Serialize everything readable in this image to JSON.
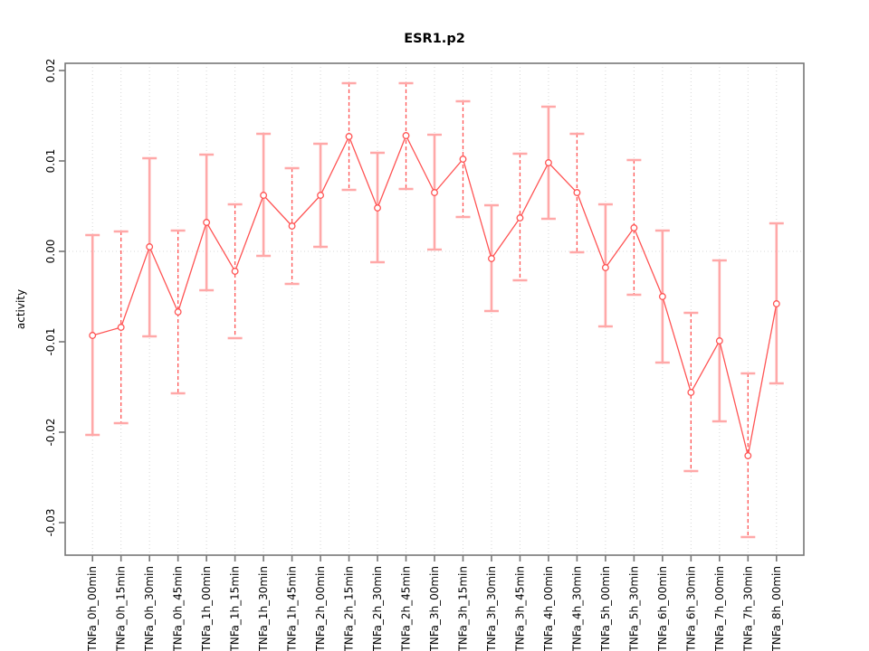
{
  "chart_data": {
    "type": "line",
    "title": "ESR1.p2",
    "xlabel": "",
    "ylabel": "activity",
    "legend": "none",
    "grid": "vertical dotted gridline at every category; horizontal dotted line at y=0 only",
    "categories": [
      "TNFa_0h_00min",
      "TNFa_0h_15min",
      "TNFa_0h_30min",
      "TNFa_0h_45min",
      "TNFa_1h_00min",
      "TNFa_1h_15min",
      "TNFa_1h_30min",
      "TNFa_1h_45min",
      "TNFa_2h_00min",
      "TNFa_2h_15min",
      "TNFa_2h_30min",
      "TNFa_2h_45min",
      "TNFa_3h_00min",
      "TNFa_3h_15min",
      "TNFa_3h_30min",
      "TNFa_3h_45min",
      "TNFa_4h_00min",
      "TNFa_4h_30min",
      "TNFa_5h_00min",
      "TNFa_5h_30min",
      "TNFa_6h_00min",
      "TNFa_6h_30min",
      "TNFa_7h_00min",
      "TNFa_7h_30min",
      "TNFa_8h_00min"
    ],
    "series": [
      {
        "name": "activity",
        "marker": "open-circle",
        "values": [
          -0.0093,
          -0.0084,
          0.0005,
          -0.0067,
          0.0032,
          -0.0022,
          0.0062,
          0.0028,
          0.0062,
          0.0127,
          0.0048,
          0.0128,
          0.0065,
          0.0102,
          -0.0008,
          0.0037,
          0.0098,
          0.0065,
          -0.0018,
          0.0026,
          -0.005,
          -0.0156,
          -0.0099,
          -0.0226,
          -0.0058
        ],
        "lower": [
          -0.0203,
          -0.019,
          -0.0094,
          -0.0157,
          -0.0043,
          -0.0096,
          -0.0005,
          -0.0036,
          0.0005,
          0.0068,
          -0.0012,
          0.0069,
          0.0002,
          0.0038,
          -0.0066,
          -0.0032,
          0.0036,
          -0.0001,
          -0.0083,
          -0.0048,
          -0.0123,
          -0.0243,
          -0.0188,
          -0.0316,
          -0.0146
        ],
        "upper": [
          0.0018,
          0.0022,
          0.0103,
          0.0023,
          0.0107,
          0.0052,
          0.013,
          0.0092,
          0.0119,
          0.0186,
          0.0109,
          0.0186,
          0.0129,
          0.0166,
          0.0051,
          0.0108,
          0.016,
          0.013,
          0.0052,
          0.0101,
          0.0023,
          -0.0068,
          -0.001,
          -0.0135,
          0.0031
        ]
      }
    ],
    "ytick_labels": [
      "0.02",
      "0.01",
      "0.00",
      "-0.01",
      "-0.02",
      "-0.03"
    ],
    "ytick_values": [
      0.02,
      0.01,
      0.0,
      -0.01,
      -0.02,
      -0.03
    ],
    "ylim": [
      -0.0336,
      0.0208
    ],
    "error_bar_style_pattern": "odd-numbered points: solid thick light-red bar; even-numbered points: dashed thin red bar; all caps light red",
    "colors": {
      "line": "#ff5454",
      "marker_stroke": "#ff5454",
      "marker_fill": "#ffffff",
      "error_bar_solid": "#ffa8a8",
      "error_bar_dashed": "#ff5454",
      "error_bar_cap": "#ffa8a8",
      "gridline": "#d6d6d6",
      "zero_line": "#d9d9d9",
      "axis_box": "#777777",
      "text": "#000000",
      "background": "#ffffff"
    }
  }
}
